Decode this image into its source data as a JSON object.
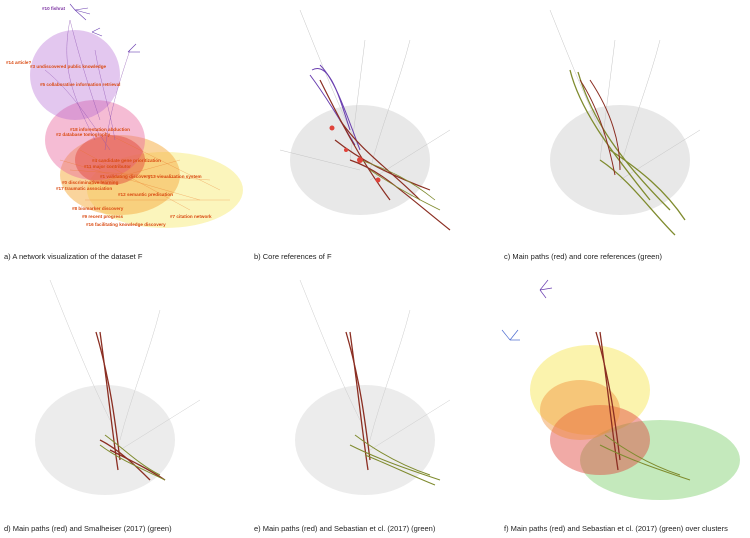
{
  "panels": [
    {
      "id": "a",
      "caption": "a) A network visualization of the dataset F"
    },
    {
      "id": "b",
      "caption": "b) Core references of F"
    },
    {
      "id": "c",
      "caption": "c) Main paths (red) and core references (green)"
    },
    {
      "id": "d",
      "caption": "d) Main paths (red) and Smalheiser (2017) (green)"
    },
    {
      "id": "e",
      "caption": "e) Main paths (red) and Sebastian et cl. (2017) (green)"
    },
    {
      "id": "f",
      "caption": "f) Main paths (red) and Sebastian et cl. (2017) (green) over clusters"
    }
  ],
  "cluster_labels": [
    "#10 fishrat",
    "#14 article?",
    "#3 undiscovered public knowledge",
    "#5 collaborative information retrieval",
    "#18 inforestation abduction",
    "#2 database tomography",
    "#4 candidate gene prioritization",
    "#11 major contributor",
    "#0 discriminative learning",
    "#13 visualization system",
    "#1 validating discovery",
    "#17 traumatic association",
    "#12 semantic predication",
    "#8 biomarker discovery",
    "#7 citation network",
    "#9 recent progress",
    "#16 facilitating knowledge discovery"
  ],
  "colors": {
    "main_path": "#8b2e22",
    "core_refs": "#7f8b2e",
    "gray_network": "#bdbdbd",
    "label_orange": "#d94a12",
    "label_purple": "#7a2fa0"
  }
}
